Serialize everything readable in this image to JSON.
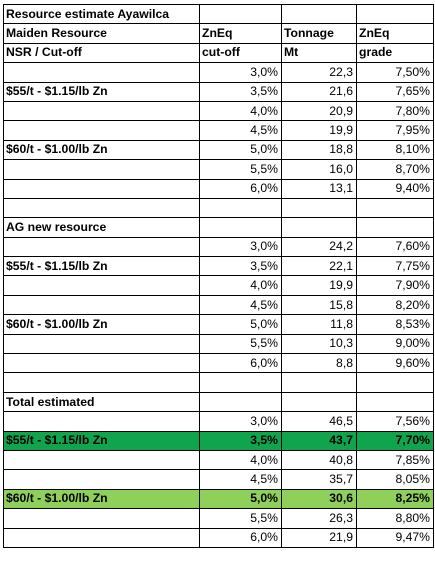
{
  "header": {
    "title": "Resource estimate Ayawilca",
    "row2": [
      "Maiden Resource",
      "ZnEq",
      "Tonnage",
      "ZnEq"
    ],
    "row3": [
      "NSR / Cut-off",
      "cut-off",
      "Mt",
      "grade"
    ]
  },
  "maiden": {
    "rows": [
      {
        "label": "",
        "cutoff": "3,0%",
        "tonnage": "22,3",
        "grade": "7,50%"
      },
      {
        "label": "$55/t - $1.15/lb Zn",
        "cutoff": "3,5%",
        "tonnage": "21,6",
        "grade": "7,65%"
      },
      {
        "label": "",
        "cutoff": "4,0%",
        "tonnage": "20,9",
        "grade": "7,80%"
      },
      {
        "label": "",
        "cutoff": "4,5%",
        "tonnage": "19,9",
        "grade": "7,95%"
      },
      {
        "label": "$60/t - $1.00/lb Zn",
        "cutoff": "5,0%",
        "tonnage": "18,8",
        "grade": "8,10%"
      },
      {
        "label": "",
        "cutoff": "5,5%",
        "tonnage": "16,0",
        "grade": "8,70%"
      },
      {
        "label": "",
        "cutoff": "6,0%",
        "tonnage": "13,1",
        "grade": "9,40%"
      }
    ]
  },
  "ag_new": {
    "title": "AG new resource",
    "rows": [
      {
        "label": "",
        "cutoff": "3,0%",
        "tonnage": "24,2",
        "grade": "7,60%"
      },
      {
        "label": "$55/t - $1.15/lb Zn",
        "cutoff": "3,5%",
        "tonnage": "22,1",
        "grade": "7,75%"
      },
      {
        "label": "",
        "cutoff": "4,0%",
        "tonnage": "19,9",
        "grade": "7,90%"
      },
      {
        "label": "",
        "cutoff": "4,5%",
        "tonnage": "15,8",
        "grade": "8,20%"
      },
      {
        "label": "$60/t - $1.00/lb Zn",
        "cutoff": "5,0%",
        "tonnage": "11,8",
        "grade": "8,53%"
      },
      {
        "label": "",
        "cutoff": "5,5%",
        "tonnage": "10,3",
        "grade": "9,00%"
      },
      {
        "label": "",
        "cutoff": "6,0%",
        "tonnage": "8,8",
        "grade": "9,60%"
      }
    ]
  },
  "total": {
    "title": "Total estimated",
    "rows": [
      {
        "label": "",
        "cutoff": "3,0%",
        "tonnage": "46,5",
        "grade": "7,56%"
      },
      {
        "label": "$55/t - $1.15/lb Zn",
        "cutoff": "3,5%",
        "tonnage": "43,7",
        "grade": "7,70%"
      },
      {
        "label": "",
        "cutoff": "4,0%",
        "tonnage": "40,8",
        "grade": "7,85%"
      },
      {
        "label": "",
        "cutoff": "4,5%",
        "tonnage": "35,7",
        "grade": "8,05%"
      },
      {
        "label": "$60/t - $1.00/lb Zn",
        "cutoff": "5,0%",
        "tonnage": "30,6",
        "grade": "8,25%"
      },
      {
        "label": "",
        "cutoff": "5,5%",
        "tonnage": "26,3",
        "grade": "8,80%"
      },
      {
        "label": "",
        "cutoff": "6,0%",
        "tonnage": "21,9",
        "grade": "9,47%"
      }
    ]
  },
  "colors": {
    "highlight_55": "#10a44c",
    "highlight_60": "#8fd05a"
  }
}
